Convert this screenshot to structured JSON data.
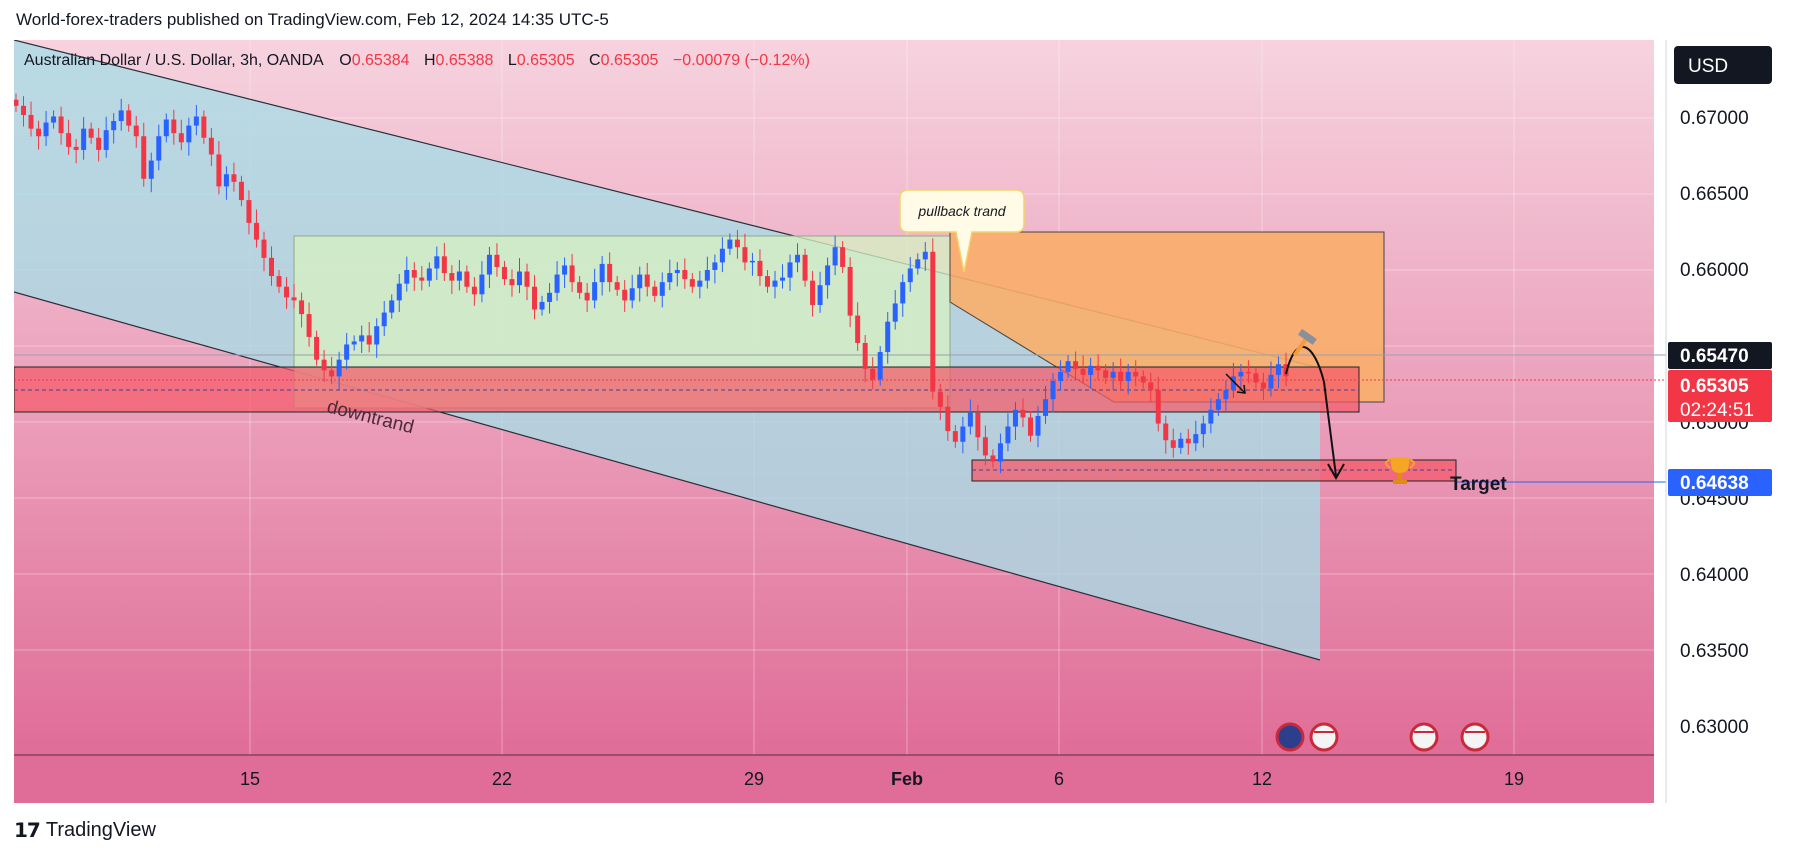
{
  "header": {
    "text": "World-forex-traders published on TradingView.com, Feb 12, 2024 14:35 UTC-5"
  },
  "legend": {
    "symbol": "Australian Dollar / U.S. Dollar, 3h, OANDA",
    "o_label": "O",
    "o_value": "0.65384",
    "h_label": "H",
    "h_value": "0.65388",
    "l_label": "L",
    "l_value": "0.65305",
    "c_label": "C",
    "c_value": "0.65305",
    "change": "−0.00079 (−0.12%)"
  },
  "currency_button": "USD",
  "price_axis": {
    "ticks": [
      "0.67000",
      "0.66500",
      "0.66000",
      "0.65000",
      "0.64500",
      "0.64000",
      "0.63500",
      "0.63000"
    ],
    "tick_values": [
      0.67,
      0.665,
      0.66,
      0.65,
      0.645,
      0.64,
      0.635,
      0.63
    ],
    "labels": {
      "resistance": "0.65470",
      "last_price": "0.65305",
      "countdown": "02:24:51",
      "target": "0.64638"
    }
  },
  "time_axis": {
    "ticks": [
      "15",
      "22",
      "29",
      "Feb",
      "6",
      "12",
      "19"
    ]
  },
  "annotations": {
    "pullback": "pullback trand",
    "downtrend": "downtrand",
    "target": "Target"
  },
  "colors": {
    "up": "#2962ff",
    "down": "#f23645",
    "background_top": "#f4c6d6",
    "background_bottom": "#e26b96",
    "channel_fill": "#b8e0e8",
    "range_fill": "#d6f0c8",
    "orange_zone": "#f9b170",
    "red_zone": "#f45a6a",
    "target_badge": "#2962ff"
  },
  "footer": {
    "brand": "TradingView"
  },
  "chart_data": {
    "type": "candlestick",
    "symbol": "AUDUSD",
    "timeframe": "3h",
    "ylim": [
      0.6275,
      0.6725
    ],
    "x_ticks": [
      "15",
      "22",
      "29",
      "Feb",
      "6",
      "12",
      "19"
    ],
    "closes": [
      0.6708,
      0.6702,
      0.6693,
      0.6688,
      0.6697,
      0.6701,
      0.669,
      0.6681,
      0.6679,
      0.6693,
      0.6687,
      0.6679,
      0.6692,
      0.6698,
      0.6705,
      0.6695,
      0.6688,
      0.666,
      0.6672,
      0.6688,
      0.6699,
      0.669,
      0.6684,
      0.6695,
      0.6701,
      0.6687,
      0.6676,
      0.6655,
      0.6663,
      0.6658,
      0.6646,
      0.6631,
      0.662,
      0.6608,
      0.6596,
      0.6589,
      0.6582,
      0.658,
      0.6571,
      0.6556,
      0.6541,
      0.6534,
      0.653,
      0.6541,
      0.6551,
      0.6553,
      0.6557,
      0.6551,
      0.6563,
      0.6572,
      0.658,
      0.6591,
      0.66,
      0.6595,
      0.6593,
      0.6601,
      0.6609,
      0.6598,
      0.6593,
      0.6599,
      0.6589,
      0.6584,
      0.6597,
      0.661,
      0.6602,
      0.6594,
      0.659,
      0.6599,
      0.6589,
      0.6574,
      0.6579,
      0.6585,
      0.6597,
      0.6603,
      0.6592,
      0.6585,
      0.658,
      0.6592,
      0.6604,
      0.6592,
      0.6587,
      0.658,
      0.6588,
      0.6597,
      0.6589,
      0.6583,
      0.6592,
      0.6598,
      0.66,
      0.6594,
      0.6589,
      0.6593,
      0.66,
      0.6605,
      0.6614,
      0.662,
      0.6615,
      0.6605,
      0.6606,
      0.6596,
      0.6589,
      0.6593,
      0.6595,
      0.6605,
      0.661,
      0.6593,
      0.6577,
      0.659,
      0.6603,
      0.6615,
      0.6602,
      0.657,
      0.6552,
      0.6535,
      0.6528,
      0.6546,
      0.6566,
      0.6578,
      0.6592,
      0.6601,
      0.6607,
      0.6612,
      0.652,
      0.651,
      0.6494,
      0.6487,
      0.6497,
      0.6506,
      0.649,
      0.6478,
      0.6474,
      0.6486,
      0.6497,
      0.6508,
      0.6503,
      0.6491,
      0.6504,
      0.6515,
      0.6527,
      0.6533,
      0.654,
      0.6535,
      0.6531,
      0.6537,
      0.6534,
      0.6529,
      0.6533,
      0.6527,
      0.6533,
      0.653,
      0.6526,
      0.6521,
      0.6499,
      0.6488,
      0.6483,
      0.6489,
      0.6486,
      0.6492,
      0.6499,
      0.6508,
      0.6515,
      0.6521,
      0.653,
      0.6533,
      0.6532,
      0.6526,
      0.6522,
      0.6531,
      0.6538,
      0.653
    ]
  }
}
